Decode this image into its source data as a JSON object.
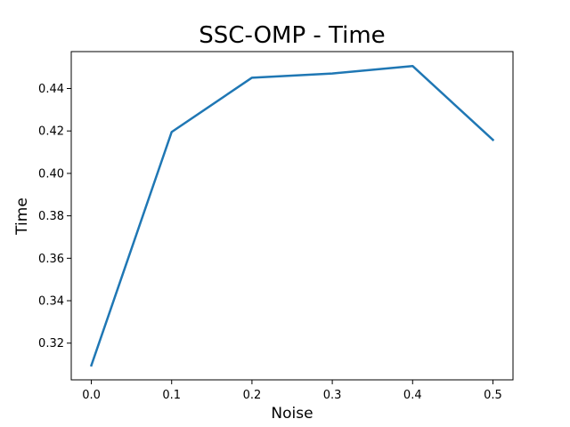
{
  "chart_data": {
    "type": "line",
    "title": "SSC-OMP - Time",
    "xlabel": "Noise",
    "ylabel": "Time",
    "x": [
      0.0,
      0.1,
      0.2,
      0.3,
      0.4,
      0.5
    ],
    "series": [
      {
        "values": [
          0.3095,
          0.4195,
          0.4451,
          0.4471,
          0.4506,
          0.4158
        ],
        "color": "#1f77b4"
      }
    ],
    "xlim": [
      -0.025,
      0.525
    ],
    "ylim": [
      0.3027,
      0.4574
    ],
    "xticks": [
      0.0,
      0.1,
      0.2,
      0.3,
      0.4,
      0.5
    ],
    "xtick_labels": [
      "0.0",
      "0.1",
      "0.2",
      "0.3",
      "0.4",
      "0.5"
    ],
    "yticks": [
      0.32,
      0.34,
      0.36,
      0.38,
      0.4,
      0.42,
      0.44
    ],
    "ytick_labels": [
      "0.32",
      "0.34",
      "0.36",
      "0.38",
      "0.40",
      "0.42",
      "0.44"
    ],
    "grid": false,
    "legend": "none"
  }
}
